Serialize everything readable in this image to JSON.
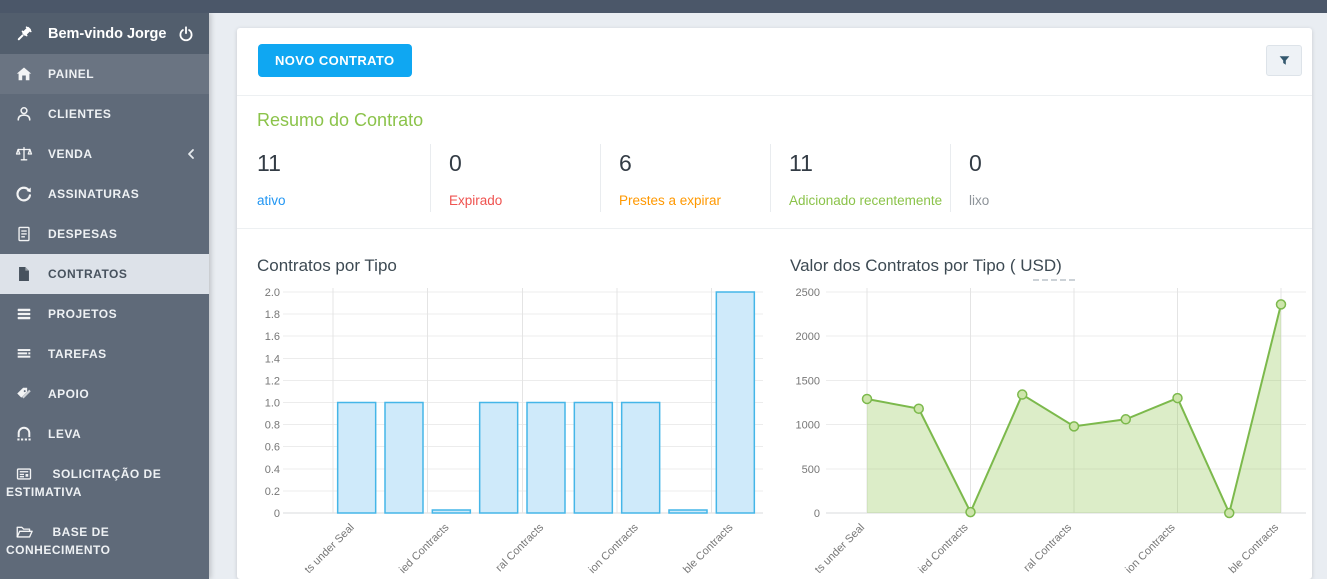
{
  "sidebar": {
    "welcome": "Bem-vindo Jorge",
    "items": [
      {
        "label": "PAINEL",
        "icon": "home-icon",
        "active": false
      },
      {
        "label": "CLIENTES",
        "icon": "clients-icon",
        "active": false
      },
      {
        "label": "VENDA",
        "icon": "scales-icon",
        "active": false,
        "has_submenu": true
      },
      {
        "label": "ASSINATURAS",
        "icon": "refresh-icon",
        "active": false
      },
      {
        "label": "DESPESAS",
        "icon": "expense-document-icon",
        "active": false
      },
      {
        "label": "CONTRATOS",
        "icon": "contract-file-icon",
        "active": true
      },
      {
        "label": "PROJETOS",
        "icon": "projects-menu-icon",
        "active": false
      },
      {
        "label": "TAREFAS",
        "icon": "tasks-list-icon",
        "active": false
      },
      {
        "label": "APOIO",
        "icon": "support-tags-icon",
        "active": false
      },
      {
        "label": "LEVA",
        "icon": "leads-bridge-icon",
        "active": false
      },
      {
        "label": "SOLICITAÇÃO DE ESTIMATIVA",
        "icon": "estimate-request-icon",
        "active": false
      },
      {
        "label": "BASE DE CONHECIMENTO",
        "icon": "knowledge-base-folder-icon",
        "active": false
      }
    ]
  },
  "toolbar": {
    "new_contract_label": "NOVO CONTRATO",
    "filter_icon": "funnel-icon"
  },
  "summary": {
    "title": "Resumo do Contrato",
    "stats": [
      {
        "value": "11",
        "label": "ativo",
        "color": "#2196f3"
      },
      {
        "value": "0",
        "label": "Expirado",
        "color": "#ef5350"
      },
      {
        "value": "6",
        "label": "Prestes a expirar",
        "color": "#ff9800"
      },
      {
        "value": "11",
        "label": "Adicionado recentemente",
        "color": "#8bc34a"
      },
      {
        "value": "0",
        "label": "lixo",
        "color": "#8d9399"
      }
    ]
  },
  "chart_data": [
    {
      "type": "bar",
      "title": "Contratos por Tipo",
      "categories": [
        "ts under Seal",
        "ied Contracts",
        "ral Contracts",
        "ion Contracts",
        "ble Contracts"
      ],
      "tick_every": 2,
      "num_bars": 9,
      "values": [
        1,
        1,
        0,
        1,
        1,
        1,
        1,
        0,
        2
      ],
      "ylim": [
        0,
        2
      ],
      "y_ticks": [
        "2.0",
        "1.8",
        "1.6",
        "1.4",
        "1.2",
        "1.0",
        "0.8",
        "0.6",
        "0.4",
        "0.2",
        "0"
      ],
      "bar_fill": "#cfeafa",
      "bar_border": "#45b6e8",
      "grid": true,
      "legend": "none",
      "x_labels_rotated_degrees": 45
    },
    {
      "type": "area",
      "title": "Valor dos Contratos por Tipo ( USD)",
      "categories": [
        "ts under Seal",
        "ied Contracts",
        "ral Contracts",
        "ion Contracts",
        "ble Contracts"
      ],
      "tick_every": 2,
      "values": [
        1290,
        1180,
        10,
        1340,
        980,
        1060,
        1300,
        0,
        2360
      ],
      "ylim": [
        0,
        2500
      ],
      "y_ticks": [
        "2500",
        "2000",
        "1500",
        "1000",
        "500",
        "0"
      ],
      "line_color": "#7cb94c",
      "fill_color": "rgba(139,195,74,0.3)",
      "marker_fill": "#cde5ab",
      "grid": true,
      "legend": "none",
      "x_labels_rotated_degrees": 45
    }
  ]
}
